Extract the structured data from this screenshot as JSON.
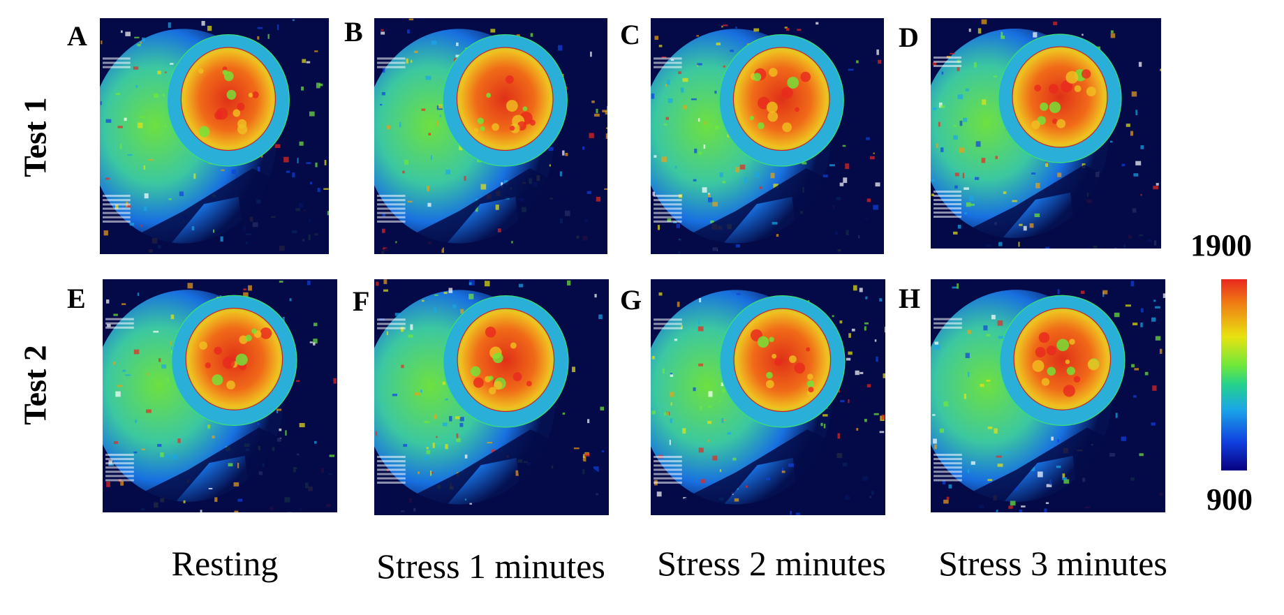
{
  "rows": [
    {
      "label": "Test 1"
    },
    {
      "label": "Test 2"
    }
  ],
  "columns": [
    {
      "label": "Resting"
    },
    {
      "label": "Stress 1 minutes"
    },
    {
      "label": "Stress 2 minutes"
    },
    {
      "label": "Stress 3 minutes"
    }
  ],
  "panels": [
    {
      "letter": "A"
    },
    {
      "letter": "B"
    },
    {
      "letter": "C"
    },
    {
      "letter": "D"
    },
    {
      "letter": "E"
    },
    {
      "letter": "F"
    },
    {
      "letter": "G"
    },
    {
      "letter": "H"
    }
  ],
  "colorbar": {
    "max_label": "1900",
    "min_label": "900",
    "colors": [
      "#e8281e",
      "#f07a14",
      "#e8e210",
      "#6fe83a",
      "#25d28c",
      "#1aa6e8",
      "#1040e0",
      "#080080"
    ]
  }
}
